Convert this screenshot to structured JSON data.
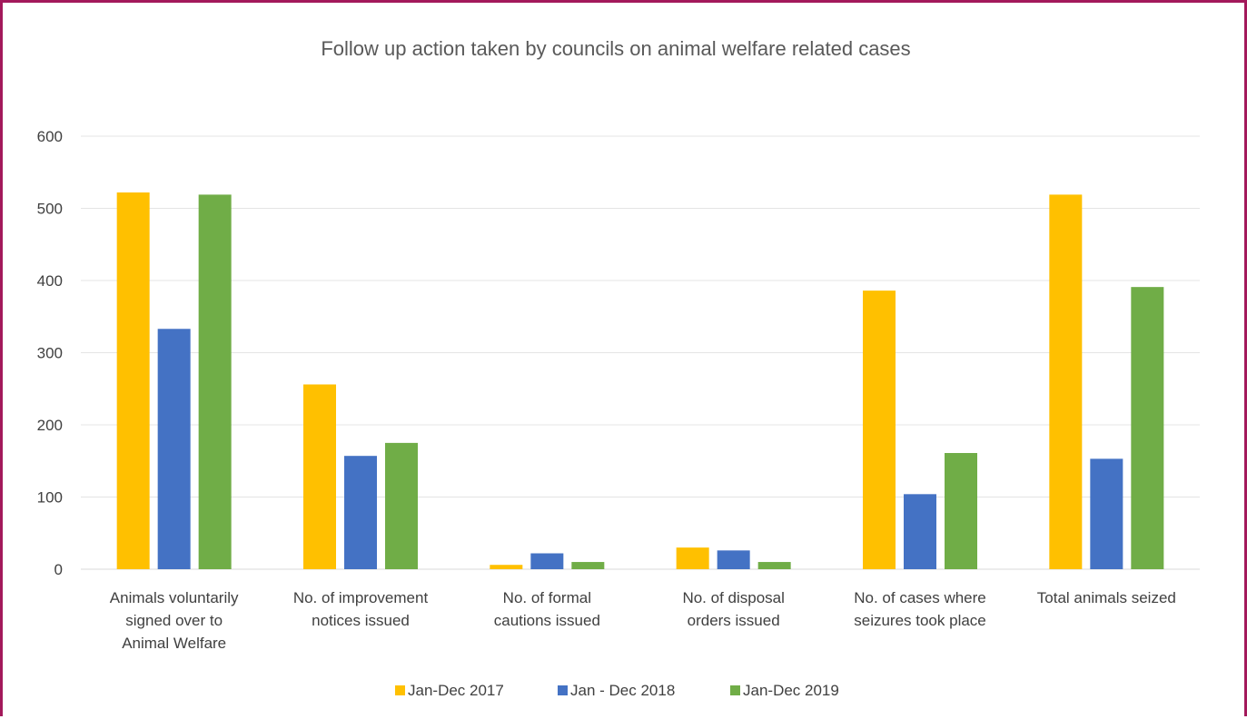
{
  "chart_data": {
    "type": "bar",
    "title": "Follow up action taken by councils on animal welfare related cases",
    "categories": [
      [
        "Animals voluntarily",
        "signed over to",
        "Animal Welfare"
      ],
      [
        "No. of improvement",
        "notices issued"
      ],
      [
        "No. of formal",
        "cautions issued"
      ],
      [
        "No. of disposal",
        "orders issued"
      ],
      [
        "No. of cases where",
        "seizures took place"
      ],
      [
        "Total animals seized"
      ]
    ],
    "series": [
      {
        "name": "Jan-Dec 2017",
        "color": "#ffc000",
        "values": [
          522,
          256,
          6,
          30,
          386,
          519
        ]
      },
      {
        "name": "Jan - Dec 2018",
        "color": "#4472c4",
        "values": [
          333,
          157,
          22,
          26,
          104,
          153
        ]
      },
      {
        "name": "Jan-Dec 2019",
        "color": "#70ad47",
        "values": [
          519,
          175,
          10,
          10,
          161,
          391
        ]
      }
    ],
    "ylim": [
      0,
      600
    ],
    "yticks": [
      0,
      100,
      200,
      300,
      400,
      500,
      600
    ],
    "grid": true,
    "legend": "bottom",
    "xlabel": "",
    "ylabel": ""
  }
}
